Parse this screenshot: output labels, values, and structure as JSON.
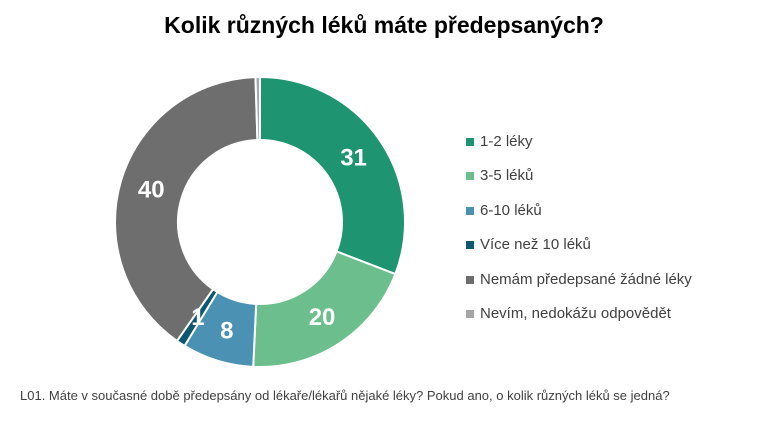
{
  "chart_data": {
    "type": "pie",
    "style": "donut",
    "title": "Kolik různých léků máte předepsaných?",
    "categories": [
      "1-2 léky",
      "3-5 léků",
      "6-10 léků",
      "Více než 10 léků",
      "Nemám předepsané žádné léky",
      "Nevím, nedokážu odpovědět"
    ],
    "values": [
      31,
      20,
      8,
      1,
      40,
      0.5
    ],
    "data_labels": [
      "31",
      "20",
      "8",
      "1",
      "40",
      ""
    ],
    "colors": [
      "#1e9470",
      "#6cbf8c",
      "#4a91b3",
      "#0d5870",
      "#6e6e6e",
      "#a6a6a6"
    ],
    "legend_position": "right"
  },
  "footnote": "L01. Máte v současné době předepsány od lékaře/lékařů nějaké léky? Pokud ano, o kolik různých léků se jedná?"
}
